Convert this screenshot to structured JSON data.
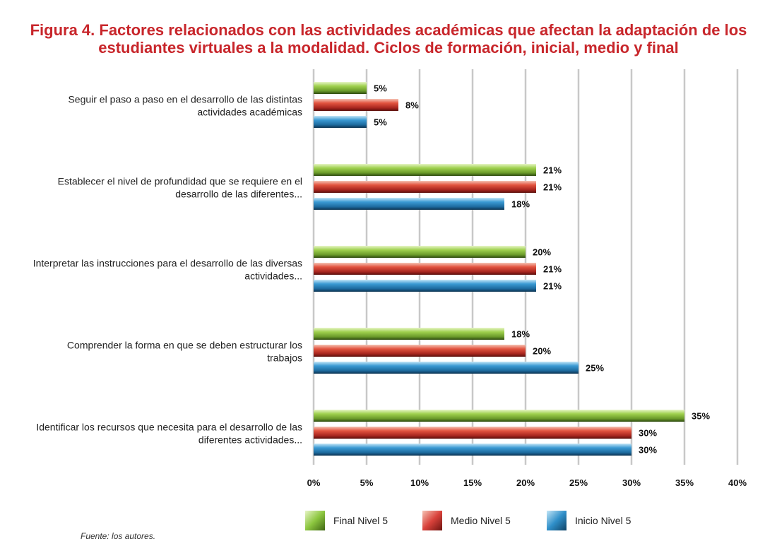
{
  "title_lines": [
    "Figura 4. Factores relacionados con las actividades académicas que afectan la adaptación de los",
    "estudiantes virtuales a la modalidad. Ciclos de formación, inicial, medio y final"
  ],
  "source": "Fuente: los autores.",
  "chart_data": {
    "type": "bar",
    "orientation": "horizontal",
    "categories": [
      [
        "Seguir el paso a paso en el desarrollo de las distintas",
        "actividades académicas"
      ],
      [
        "Establecer el nivel de profundidad que se requiere en el",
        "desarrollo de las diferentes..."
      ],
      [
        "Interpretar las instrucciones para el desarrollo de las diversas",
        "actividades..."
      ],
      [
        "Comprender la forma en que se deben estructurar los",
        "trabajos"
      ],
      [
        "Identificar los recursos que necesita para el desarrollo de las",
        "diferentes actividades..."
      ]
    ],
    "series": [
      {
        "name": "Final Nivel 5",
        "color": "#8cc63f",
        "values": [
          5,
          21,
          20,
          18,
          35
        ],
        "labels": [
          "5%",
          "21%",
          "20%",
          "18%",
          "35%"
        ]
      },
      {
        "name": "Medio Nivel 5",
        "color": "#d9423b",
        "values": [
          8,
          21,
          21,
          20,
          30
        ],
        "labels": [
          "8%",
          "21%",
          "21%",
          "20%",
          "30%"
        ]
      },
      {
        "name": "Inicio Nivel 5",
        "color": "#2f8fc9",
        "values": [
          5,
          18,
          21,
          25,
          30
        ],
        "labels": [
          "5%",
          "18%",
          "21%",
          "25%",
          "30%"
        ]
      }
    ],
    "xlim": [
      0,
      40
    ],
    "xticks": [
      0,
      5,
      10,
      15,
      20,
      25,
      30,
      35,
      40
    ],
    "xtick_labels": [
      "0%",
      "5%",
      "10%",
      "15%",
      "20%",
      "25%",
      "30%",
      "35%",
      "40%"
    ],
    "grid": "vertical",
    "legend_position": "bottom"
  }
}
